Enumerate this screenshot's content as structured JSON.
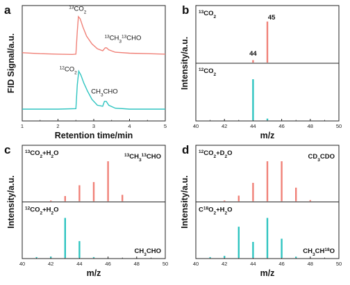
{
  "colors": {
    "red": "#f08077",
    "teal": "#2ec4c0",
    "axis": "#222222"
  },
  "chart_data": [
    {
      "panel": "a",
      "type": "line",
      "xlabel": "Retention time/min",
      "ylabel": "FID Signal/a.u.",
      "xlim": [
        1,
        5
      ],
      "xticks": [
        1,
        2,
        3,
        4,
        5
      ],
      "grid": false,
      "series": [
        {
          "color": "red",
          "baseline": 0.62,
          "points": [
            [
              1,
              0.63
            ],
            [
              1.5,
              0.62
            ],
            [
              2.0,
              0.615
            ],
            [
              2.4,
              0.612
            ],
            [
              2.5,
              0.615
            ],
            [
              2.54,
              0.85
            ],
            [
              2.57,
              1.0
            ],
            [
              2.62,
              0.98
            ],
            [
              2.7,
              0.89
            ],
            [
              2.8,
              0.8
            ],
            [
              2.95,
              0.72
            ],
            [
              3.1,
              0.67
            ],
            [
              3.25,
              0.65
            ],
            [
              3.32,
              0.68
            ],
            [
              3.36,
              0.68
            ],
            [
              3.42,
              0.66
            ],
            [
              3.6,
              0.635
            ],
            [
              4.0,
              0.625
            ],
            [
              4.5,
              0.62
            ],
            [
              5.0,
              0.615
            ]
          ],
          "labels": [
            {
              "parts": [
                [
                  "13",
                  "sup"
                ],
                [
                  "CO",
                  ""
                ],
                [
                  "2",
                  "sub"
                ]
              ],
              "x": 2.55,
              "y": 1.06,
              "anchor": "middle"
            },
            {
              "parts": [
                [
                  "13",
                  "sup"
                ],
                [
                  "CH",
                  ""
                ],
                [
                  "3",
                  "sub"
                ],
                [
                  "13",
                  "sup"
                ],
                [
                  "CHO",
                  ""
                ]
              ],
              "x": 3.3,
              "y": 0.76,
              "anchor": "start"
            }
          ]
        },
        {
          "color": "teal",
          "baseline": 0.05,
          "points": [
            [
              1,
              0.05
            ],
            [
              1.5,
              0.05
            ],
            [
              2.0,
              0.05
            ],
            [
              2.5,
              0.055
            ],
            [
              2.54,
              0.3
            ],
            [
              2.58,
              0.44
            ],
            [
              2.64,
              0.4
            ],
            [
              2.72,
              0.32
            ],
            [
              2.82,
              0.24
            ],
            [
              2.95,
              0.15
            ],
            [
              3.1,
              0.09
            ],
            [
              3.25,
              0.08
            ],
            [
              3.3,
              0.13
            ],
            [
              3.35,
              0.13
            ],
            [
              3.42,
              0.09
            ],
            [
              3.6,
              0.06
            ],
            [
              4.0,
              0.05
            ],
            [
              4.5,
              0.05
            ],
            [
              5.0,
              0.05
            ]
          ],
          "labels": [
            {
              "parts": [
                [
                  "12",
                  "sup"
                ],
                [
                  "CO",
                  ""
                ],
                [
                  "2",
                  "sub"
                ]
              ],
              "x": 2.53,
              "y": 0.44,
              "anchor": "end"
            },
            {
              "parts": [
                [
                  "CH",
                  ""
                ],
                [
                  "3",
                  "sub"
                ],
                [
                  "CHO",
                  ""
                ]
              ],
              "x": 3.3,
              "y": 0.21,
              "anchor": "middle"
            }
          ]
        }
      ]
    },
    {
      "panel": "b",
      "type": "bar",
      "xlabel": "m/z",
      "ylabel": "Intensity/a.u.",
      "xlim": [
        40,
        50
      ],
      "xticks": [
        40,
        42,
        44,
        46,
        48,
        50
      ],
      "grid": false,
      "subplots": [
        {
          "color": "red",
          "label": [
            [
              "13",
              "sup"
            ],
            [
              "CO",
              ""
            ],
            [
              "2",
              "sub"
            ]
          ],
          "bars": [
            [
              44,
              0.06
            ],
            [
              45,
              1.0
            ]
          ],
          "value_labels": [
            {
              "text": "44",
              "x": 44,
              "y": 0.12
            },
            {
              "text": "45",
              "x": 45.3,
              "y": 1.0
            }
          ]
        },
        {
          "color": "teal",
          "label": [
            [
              "12",
              "sup"
            ],
            [
              "CO",
              ""
            ],
            [
              "2",
              "sub"
            ]
          ],
          "bars": [
            [
              44,
              1.0
            ],
            [
              45,
              0.04
            ]
          ]
        }
      ]
    },
    {
      "panel": "c",
      "type": "bar",
      "xlabel": "m/z",
      "ylabel": "Intensity/a.u.",
      "xlim": [
        40,
        50
      ],
      "xticks": [
        40,
        42,
        44,
        46,
        48,
        50
      ],
      "grid": false,
      "subplots": [
        {
          "color": "red",
          "label": [
            [
              "13",
              "sup"
            ],
            [
              "CO",
              ""
            ],
            [
              "2",
              "sub"
            ],
            [
              "+H",
              ""
            ],
            [
              "2",
              "sub"
            ],
            [
              "O",
              ""
            ]
          ],
          "label_right": [
            [
              "13",
              "sup"
            ],
            [
              "CH",
              ""
            ],
            [
              "3",
              "sub"
            ],
            [
              "13",
              "sup"
            ],
            [
              "CHO",
              ""
            ]
          ],
          "bars": [
            [
              42,
              0.02
            ],
            [
              43,
              0.13
            ],
            [
              44,
              0.4
            ],
            [
              45,
              0.48
            ],
            [
              46,
              1.0
            ],
            [
              47,
              0.16
            ]
          ]
        },
        {
          "color": "teal",
          "label": [
            [
              "12",
              "sup"
            ],
            [
              "CO",
              ""
            ],
            [
              "2",
              "sub"
            ],
            [
              "+H",
              ""
            ],
            [
              "2",
              "sub"
            ],
            [
              "O",
              ""
            ]
          ],
          "label_right": [
            [
              "CH",
              ""
            ],
            [
              "3",
              "sub"
            ],
            [
              "CHO",
              ""
            ]
          ],
          "bars": [
            [
              41,
              0.02
            ],
            [
              42,
              0.03
            ],
            [
              43,
              1.0
            ],
            [
              44,
              0.42
            ],
            [
              45,
              0.02
            ]
          ]
        }
      ]
    },
    {
      "panel": "d",
      "type": "bar",
      "xlabel": "m/z",
      "ylabel": "Intensity/a.u.",
      "xlim": [
        40,
        50
      ],
      "xticks": [
        40,
        42,
        44,
        46,
        48,
        50
      ],
      "grid": false,
      "subplots": [
        {
          "color": "red",
          "label": [
            [
              "12",
              "sup"
            ],
            [
              "CO",
              ""
            ],
            [
              "2",
              "sub"
            ],
            [
              "+D",
              ""
            ],
            [
              "2",
              "sub"
            ],
            [
              "O",
              ""
            ]
          ],
          "label_right": [
            [
              "CD",
              ""
            ],
            [
              "3",
              "sub"
            ],
            [
              "CDO",
              ""
            ]
          ],
          "bars": [
            [
              42,
              0.02
            ],
            [
              43,
              0.14
            ],
            [
              44,
              0.46
            ],
            [
              45,
              1.0
            ],
            [
              46,
              1.0
            ],
            [
              47,
              0.34
            ],
            [
              48,
              0.03
            ]
          ]
        },
        {
          "color": "teal",
          "label": [
            [
              "C",
              ""
            ],
            [
              "18",
              "sup"
            ],
            [
              "O",
              ""
            ],
            [
              "2",
              "sub"
            ],
            [
              "+H",
              ""
            ],
            [
              "2",
              "sub"
            ],
            [
              "O",
              ""
            ]
          ],
          "label_right": [
            [
              "CH",
              ""
            ],
            [
              "3",
              "sub"
            ],
            [
              "CH",
              ""
            ],
            [
              "18",
              "sup"
            ],
            [
              "O",
              ""
            ]
          ],
          "bars": [
            [
              41,
              0.02
            ],
            [
              42,
              0.05
            ],
            [
              43,
              0.78
            ],
            [
              44,
              0.4
            ],
            [
              45,
              1.0
            ],
            [
              46,
              0.48
            ],
            [
              47,
              0.03
            ]
          ]
        }
      ]
    }
  ]
}
